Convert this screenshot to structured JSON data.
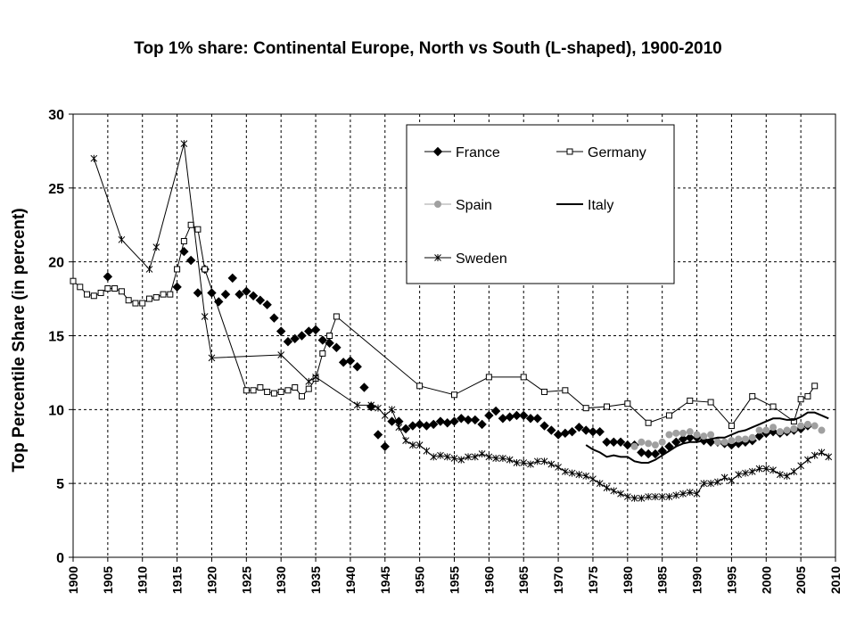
{
  "chart_data": {
    "type": "line",
    "title": "Top 1% share: Continental Europe, North vs South (L-shaped), 1900-2010",
    "xlabel": "",
    "ylabel": "Top Percentile Share (in percent)",
    "xlim": [
      1900,
      2010
    ],
    "ylim": [
      0,
      30
    ],
    "x_ticks": [
      "1900",
      "1905",
      "1910",
      "1915",
      "1920",
      "1925",
      "1930",
      "1935",
      "1940",
      "1945",
      "1950",
      "1955",
      "1960",
      "1965",
      "1970",
      "1975",
      "1980",
      "1985",
      "1990",
      "1995",
      "2000",
      "2005",
      "2010"
    ],
    "y_ticks": [
      "0",
      "5",
      "10",
      "15",
      "20",
      "25",
      "30"
    ],
    "grid": true,
    "legend_position": "top-right",
    "series": [
      {
        "name": "France",
        "color": "#000000",
        "marker": "diamond",
        "x": [
          1905,
          1915,
          1916,
          1917,
          1918,
          1919,
          1920,
          1921,
          1922,
          1923,
          1924,
          1925,
          1926,
          1927,
          1928,
          1929,
          1930,
          1931,
          1932,
          1933,
          1934,
          1935,
          1936,
          1937,
          1938,
          1939,
          1940,
          1941,
          1942,
          1943,
          1944,
          1945,
          1946,
          1947,
          1948,
          1949,
          1950,
          1951,
          1952,
          1953,
          1954,
          1955,
          1956,
          1957,
          1958,
          1959,
          1960,
          1961,
          1962,
          1963,
          1964,
          1965,
          1966,
          1967,
          1968,
          1969,
          1970,
          1971,
          1972,
          1973,
          1974,
          1975,
          1976,
          1977,
          1978,
          1979,
          1980,
          1981,
          1982,
          1983,
          1984,
          1985,
          1986,
          1987,
          1988,
          1989,
          1990,
          1991,
          1992,
          1993,
          1994,
          1995,
          1996,
          1997,
          1998,
          1999,
          2000,
          2001,
          2002,
          2003,
          2004,
          2005,
          2006
        ],
        "y": [
          19.0,
          18.3,
          20.7,
          20.1,
          17.9,
          19.5,
          17.9,
          17.3,
          17.8,
          18.9,
          17.8,
          18.0,
          17.7,
          17.4,
          17.1,
          16.2,
          15.3,
          14.6,
          14.8,
          15.0,
          15.3,
          15.4,
          14.7,
          14.5,
          14.2,
          13.2,
          13.3,
          12.9,
          11.5,
          10.2,
          8.3,
          7.5,
          9.2,
          9.2,
          8.7,
          8.9,
          9.0,
          8.9,
          9.0,
          9.2,
          9.1,
          9.2,
          9.4,
          9.3,
          9.3,
          9.0,
          9.6,
          9.9,
          9.4,
          9.5,
          9.6,
          9.6,
          9.4,
          9.4,
          8.9,
          8.6,
          8.3,
          8.4,
          8.5,
          8.8,
          8.6,
          8.5,
          8.5,
          7.8,
          7.8,
          7.8,
          7.6,
          7.6,
          7.1,
          7.0,
          7.0,
          7.2,
          7.5,
          7.8,
          8.0,
          8.1,
          8.1,
          7.9,
          7.8,
          7.8,
          7.7,
          7.6,
          7.7,
          7.8,
          7.9,
          8.2,
          8.4,
          8.5,
          8.4,
          8.5,
          8.6,
          8.7,
          8.9
        ]
      },
      {
        "name": "Germany",
        "color": "#000000",
        "marker": "square-open",
        "x": [
          1900,
          1901,
          1902,
          1903,
          1904,
          1905,
          1906,
          1907,
          1908,
          1909,
          1910,
          1911,
          1912,
          1913,
          1914,
          1915,
          1916,
          1917,
          1918,
          1919,
          1925,
          1926,
          1927,
          1928,
          1929,
          1930,
          1931,
          1932,
          1933,
          1934,
          1935,
          1936,
          1937,
          1938,
          1950,
          1955,
          1960,
          1965,
          1968,
          1971,
          1974,
          1977,
          1980,
          1983,
          1986,
          1989,
          1992,
          1995,
          1998,
          2001,
          2004,
          2005,
          2006,
          2007
        ],
        "y": [
          18.7,
          18.3,
          17.8,
          17.7,
          17.9,
          18.2,
          18.2,
          18.0,
          17.4,
          17.2,
          17.2,
          17.5,
          17.6,
          17.8,
          17.8,
          19.5,
          21.4,
          22.5,
          22.2,
          19.5,
          11.3,
          11.3,
          11.5,
          11.2,
          11.1,
          11.2,
          11.3,
          11.5,
          10.9,
          11.4,
          12.1,
          13.8,
          15.0,
          16.3,
          11.6,
          11.0,
          12.2,
          12.2,
          11.2,
          11.3,
          10.1,
          10.2,
          10.4,
          9.1,
          9.6,
          10.6,
          10.5,
          8.9,
          10.9,
          10.2,
          9.2,
          10.7,
          10.9,
          11.6
        ]
      },
      {
        "name": "Spain",
        "color": "#a0a0a0",
        "marker": "circle",
        "x": [
          1981,
          1982,
          1983,
          1984,
          1985,
          1986,
          1987,
          1988,
          1989,
          1990,
          1991,
          1992,
          1993,
          1994,
          1995,
          1996,
          1997,
          1998,
          1999,
          2000,
          2001,
          2002,
          2003,
          2004,
          2005,
          2006,
          2007,
          2008
        ],
        "y": [
          7.5,
          7.8,
          7.7,
          7.6,
          7.8,
          8.3,
          8.4,
          8.4,
          8.5,
          8.3,
          8.2,
          8.3,
          7.8,
          7.8,
          7.9,
          8.0,
          8.0,
          8.1,
          8.6,
          8.6,
          8.8,
          8.5,
          8.6,
          8.7,
          8.9,
          9.0,
          8.9,
          8.6
        ]
      },
      {
        "name": "Italy",
        "color": "#000000",
        "marker": "none",
        "x": [
          1974,
          1975,
          1976,
          1977,
          1978,
          1979,
          1980,
          1981,
          1982,
          1983,
          1984,
          1985,
          1986,
          1987,
          1988,
          1989,
          1990,
          1991,
          1992,
          1993,
          1994,
          1995,
          1996,
          1997,
          1998,
          1999,
          2000,
          2001,
          2002,
          2003,
          2004,
          2005,
          2006,
          2007,
          2008,
          2009
        ],
        "y": [
          7.6,
          7.3,
          7.1,
          6.8,
          6.9,
          6.8,
          6.8,
          6.5,
          6.4,
          6.4,
          6.6,
          6.9,
          7.2,
          7.5,
          7.7,
          7.8,
          7.8,
          7.9,
          8.0,
          8.1,
          8.1,
          8.3,
          8.5,
          8.6,
          8.8,
          9.0,
          9.2,
          9.4,
          9.4,
          9.3,
          9.3,
          9.5,
          9.8,
          9.8,
          9.6,
          9.4
        ]
      },
      {
        "name": "Sweden",
        "color": "#000000",
        "marker": "star",
        "x": [
          1903,
          1907,
          1911,
          1912,
          1916,
          1919,
          1920,
          1930,
          1934,
          1935,
          1941,
          1943,
          1944,
          1945,
          1946,
          1947,
          1948,
          1949,
          1950,
          1951,
          1952,
          1953,
          1954,
          1955,
          1956,
          1957,
          1958,
          1959,
          1960,
          1961,
          1962,
          1963,
          1964,
          1965,
          1966,
          1967,
          1968,
          1969,
          1970,
          1971,
          1972,
          1973,
          1974,
          1975,
          1976,
          1977,
          1978,
          1979,
          1980,
          1981,
          1982,
          1983,
          1984,
          1985,
          1986,
          1987,
          1988,
          1989,
          1990,
          1991,
          1992,
          1993,
          1994,
          1995,
          1996,
          1997,
          1998,
          1999,
          2000,
          2001,
          2002,
          2003,
          2004,
          2005,
          2006,
          2007,
          2008,
          2009
        ],
        "y": [
          27.0,
          21.5,
          19.5,
          21.0,
          28.0,
          16.3,
          13.5,
          13.7,
          11.9,
          12.2,
          10.3,
          10.3,
          10.1,
          9.6,
          10.0,
          8.8,
          7.9,
          7.6,
          7.6,
          7.2,
          6.8,
          6.9,
          6.8,
          6.7,
          6.6,
          6.8,
          6.8,
          7.0,
          6.8,
          6.7,
          6.7,
          6.6,
          6.4,
          6.4,
          6.3,
          6.5,
          6.5,
          6.3,
          6.1,
          5.8,
          5.7,
          5.6,
          5.5,
          5.3,
          5.0,
          4.7,
          4.5,
          4.3,
          4.1,
          4.0,
          4.0,
          4.1,
          4.1,
          4.1,
          4.1,
          4.2,
          4.3,
          4.4,
          4.3,
          5.0,
          5.0,
          5.1,
          5.4,
          5.2,
          5.6,
          5.7,
          5.8,
          6.0,
          6.0,
          5.9,
          5.6,
          5.5,
          5.8,
          6.2,
          6.6,
          6.9,
          7.1,
          6.8
        ]
      }
    ]
  }
}
